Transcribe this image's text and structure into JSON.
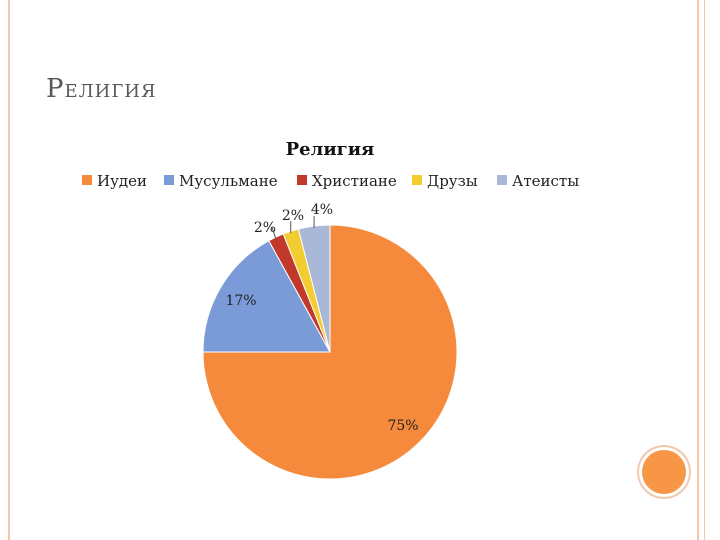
{
  "slide": {
    "title": "Религия"
  },
  "chart_data": {
    "type": "pie",
    "title": "Религия",
    "legend_position": "top",
    "categories": [
      "Иудеи",
      "Мусульмане",
      "Христиане",
      "Друзы",
      "Атеисты"
    ],
    "values": [
      75,
      17,
      2,
      2,
      4
    ],
    "value_labels": [
      "75%",
      "17%",
      "2%",
      "2%",
      "4%"
    ],
    "colors": [
      "#f68a3c",
      "#7a9bd8",
      "#c0392b",
      "#f2cc30",
      "#aab8d8"
    ]
  }
}
